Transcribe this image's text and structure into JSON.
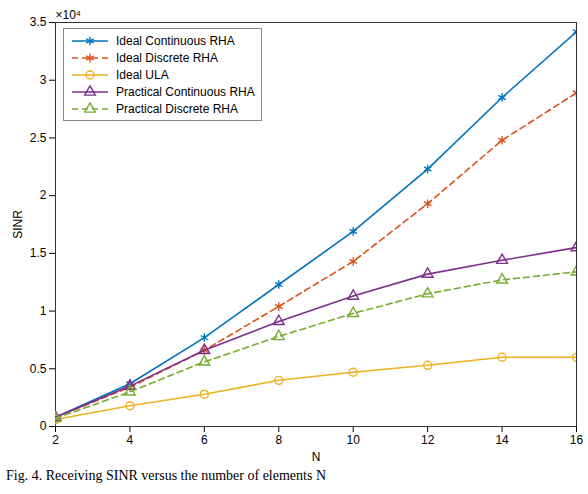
{
  "chart_data": {
    "type": "line",
    "caption": "Fig. 4. Receiving SINR versus the number of elements N",
    "x_label": "N",
    "y_label": "SINR",
    "annotations": [
      {
        "text": "×10⁴"
      }
    ],
    "x": [
      2,
      4,
      6,
      8,
      10,
      12,
      14,
      16
    ],
    "xlim": [
      2,
      16
    ],
    "xticks": [
      2,
      4,
      6,
      8,
      10,
      12,
      14,
      16
    ],
    "ylim": [
      0,
      3.5
    ],
    "yticks": [
      0,
      0.5,
      1,
      1.5,
      2,
      2.5,
      3,
      3.5
    ],
    "grid": false,
    "legend": "upper left",
    "series": [
      {
        "name": "Ideal Continuous RHA",
        "color": "#0072BD",
        "marker": "asterisk",
        "line_style": "solid",
        "values": [
          0.08,
          0.37,
          0.77,
          1.23,
          1.69,
          2.23,
          2.85,
          3.42
        ]
      },
      {
        "name": "Ideal Discrete RHA",
        "color": "#D95319",
        "marker": "asterisk",
        "line_style": "dashed",
        "values": [
          0.08,
          0.34,
          0.66,
          1.04,
          1.43,
          1.93,
          2.48,
          2.89
        ]
      },
      {
        "name": "Ideal ULA",
        "color": "#EDB120",
        "marker": "circle",
        "line_style": "solid",
        "values": [
          0.06,
          0.18,
          0.28,
          0.4,
          0.47,
          0.53,
          0.6,
          0.6
        ]
      },
      {
        "name": "Practical Continuous RHA",
        "color": "#7E2F8E",
        "marker": "triangle",
        "line_style": "solid",
        "values": [
          0.08,
          0.35,
          0.66,
          0.91,
          1.13,
          1.32,
          1.44,
          1.55
        ]
      },
      {
        "name": "Practical Discrete RHA",
        "color": "#77AC30",
        "marker": "triangle",
        "line_style": "dashed",
        "values": [
          0.07,
          0.3,
          0.56,
          0.78,
          0.98,
          1.15,
          1.27,
          1.34
        ]
      }
    ]
  }
}
